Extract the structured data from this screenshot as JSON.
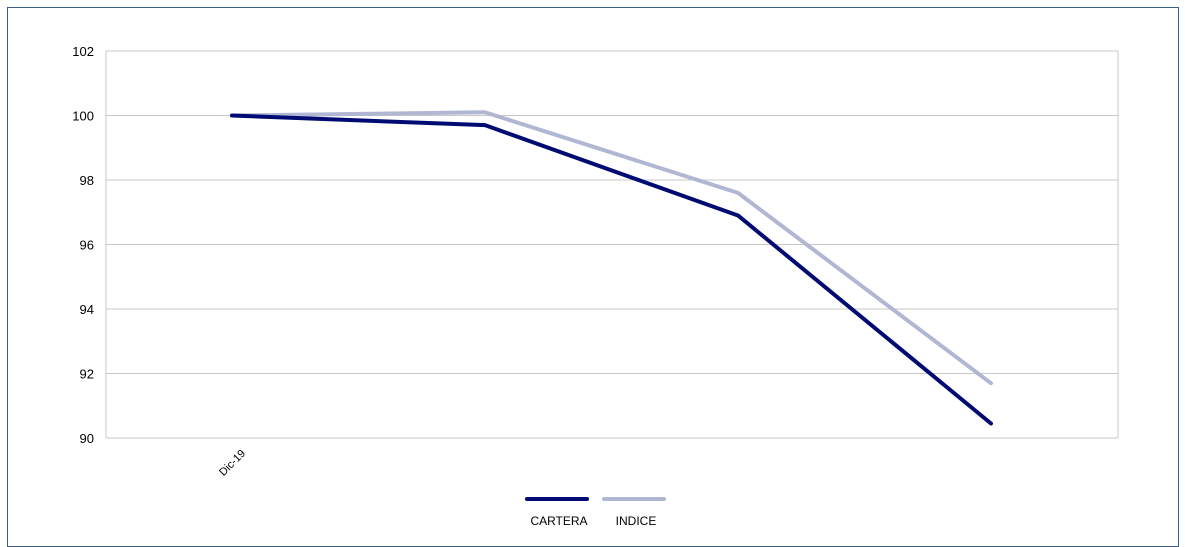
{
  "chart_data": {
    "type": "line",
    "categories": [
      "Dic-19",
      "",
      "",
      ""
    ],
    "series": [
      {
        "name": "CARTERA",
        "color": "#000a73",
        "values": [
          100.0,
          99.7,
          96.9,
          90.45
        ]
      },
      {
        "name": "INDICE",
        "color": "#b1b7d3",
        "values": [
          100.0,
          100.1,
          97.6,
          91.7
        ]
      }
    ],
    "ylim": [
      90,
      102
    ],
    "yticks": [
      "90",
      "92",
      "94",
      "96",
      "98",
      "100",
      "102"
    ],
    "grid": true,
    "legend_position": "bottom"
  }
}
